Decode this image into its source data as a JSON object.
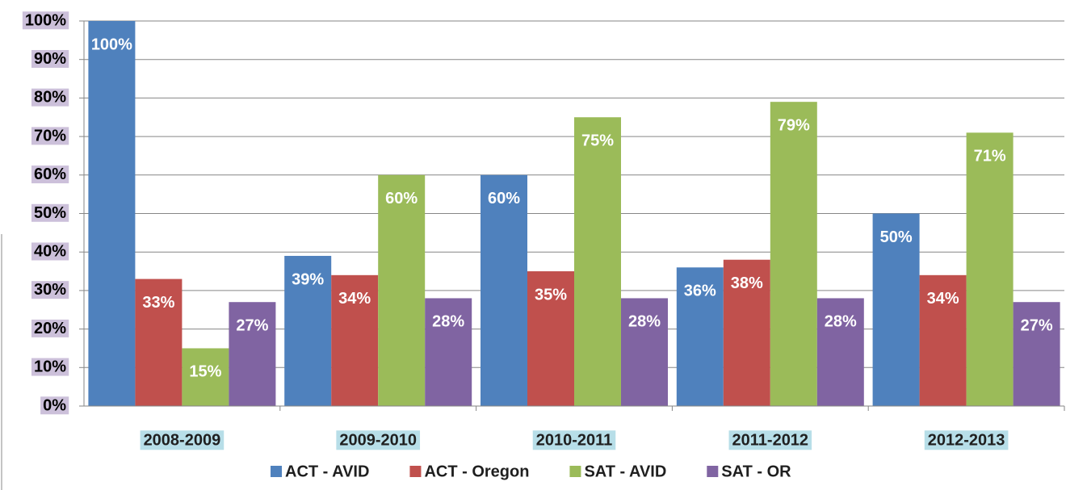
{
  "chart_data": {
    "type": "bar",
    "categories": [
      "2008-2009",
      "2009-2010",
      "2010-2011",
      "2011-2012",
      "2012-2013"
    ],
    "series": [
      {
        "name": "ACT - AVID",
        "color": "#4f81bd",
        "values": [
          100,
          39,
          60,
          36,
          50
        ],
        "value_labels": [
          "100%",
          "39%",
          "60%",
          "36%",
          "50%"
        ]
      },
      {
        "name": "ACT - Oregon",
        "color": "#c0504d",
        "values": [
          33,
          34,
          35,
          38,
          34
        ],
        "value_labels": [
          "33%",
          "34%",
          "35%",
          "38%",
          "34%"
        ]
      },
      {
        "name": "SAT - AVID",
        "color": "#9bbb59",
        "values": [
          15,
          60,
          75,
          79,
          71
        ],
        "value_labels": [
          "15%",
          "60%",
          "75%",
          "79%",
          "71%"
        ]
      },
      {
        "name": "SAT - OR",
        "color": "#8064a2",
        "values": [
          27,
          28,
          28,
          28,
          27
        ],
        "value_labels": [
          "27%",
          "28%",
          "28%",
          "28%",
          "27%"
        ]
      }
    ],
    "ylim": [
      0,
      100
    ],
    "yticks": [
      {
        "value": 0,
        "label": "0%"
      },
      {
        "value": 10,
        "label": "10%"
      },
      {
        "value": 20,
        "label": "20%"
      },
      {
        "value": 30,
        "label": "30%"
      },
      {
        "value": 40,
        "label": "40%"
      },
      {
        "value": 50,
        "label": "50%"
      },
      {
        "value": 60,
        "label": "60%"
      },
      {
        "value": 70,
        "label": "70%"
      },
      {
        "value": 80,
        "label": "80%"
      },
      {
        "value": 90,
        "label": "90%"
      },
      {
        "value": 100,
        "label": "100%"
      }
    ],
    "grid": true,
    "legend": "bottom"
  }
}
